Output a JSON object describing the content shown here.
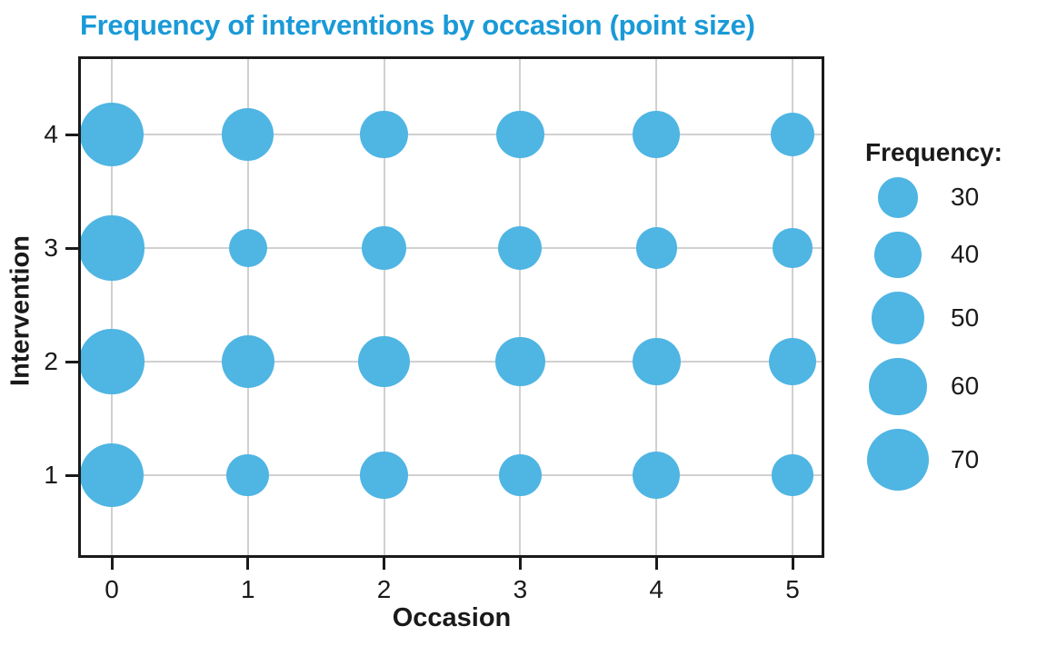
{
  "chart_data": {
    "type": "scatter",
    "subtype": "bubble",
    "title": "Frequency of interventions by occasion (point size)",
    "xlabel": "Occasion",
    "ylabel": "Intervention",
    "x_ticks": [
      "0",
      "1",
      "2",
      "3",
      "4",
      "5"
    ],
    "y_ticks": [
      "1",
      "2",
      "3",
      "4"
    ],
    "xlim": [
      -0.25,
      5.25
    ],
    "ylim": [
      0.3,
      4.7
    ],
    "grid": true,
    "size_encoding": "bubble area proportional to frequency",
    "legend": {
      "title": "Frequency:",
      "position": "right",
      "sizes": [
        30,
        40,
        50,
        60,
        70
      ]
    },
    "series": [
      {
        "name": "Intervention 1",
        "y": 1,
        "x": [
          0,
          1,
          2,
          3,
          4,
          5
        ],
        "frequency": [
          74,
          33,
          42,
          33,
          41,
          31
        ]
      },
      {
        "name": "Intervention 2",
        "y": 2,
        "x": [
          0,
          1,
          2,
          3,
          4,
          5
        ],
        "frequency": [
          76,
          51,
          48,
          45,
          42,
          41
        ]
      },
      {
        "name": "Intervention 3",
        "y": 3,
        "x": [
          0,
          1,
          2,
          3,
          4,
          5
        ],
        "frequency": [
          76,
          27,
          36,
          35,
          31,
          28
        ]
      },
      {
        "name": "Intervention 4",
        "y": 4,
        "x": [
          0,
          1,
          2,
          3,
          4,
          5
        ],
        "frequency": [
          74,
          49,
          42,
          42,
          40,
          36
        ]
      }
    ],
    "colors": {
      "bubble": "#4FB5E3",
      "title": "#1A9AD7",
      "grid": "#D0D0D0",
      "axis": "#1A1A1A",
      "text": "#1A1A1A",
      "background": "#FFFFFF"
    }
  }
}
